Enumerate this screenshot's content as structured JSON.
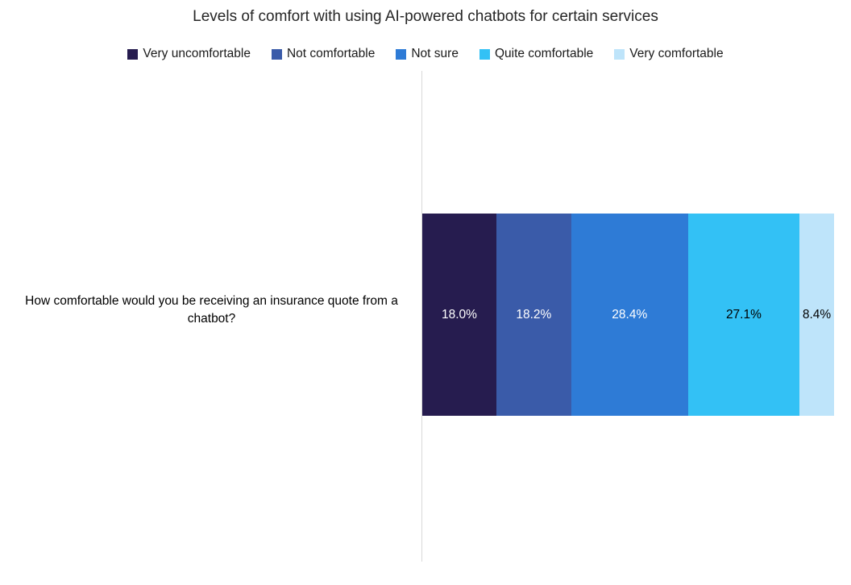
{
  "chart_data": {
    "type": "bar",
    "orientation": "horizontal",
    "stacked": true,
    "grid": false,
    "legend_position": "top",
    "title": "Levels of comfort with using AI-powered chatbots for certain services",
    "categories": [
      "How comfortable would you be receiving an insurance quote from a chatbot?"
    ],
    "xlim": [
      0,
      100
    ],
    "series": [
      {
        "name": "Very uncomfortable",
        "values": [
          18.0
        ],
        "label": "18.0%",
        "color": "#261C4F",
        "label_color": "#FFFFFF"
      },
      {
        "name": "Not comfortable",
        "values": [
          18.2
        ],
        "label": "18.2%",
        "color": "#3A5BA9",
        "label_color": "#FFFFFF"
      },
      {
        "name": "Not sure",
        "values": [
          28.4
        ],
        "label": "28.4%",
        "color": "#2E7BD6",
        "label_color": "#FFFFFF"
      },
      {
        "name": "Quite comfortable",
        "values": [
          27.1
        ],
        "label": "27.1%",
        "color": "#33C1F5",
        "label_color": "#000000"
      },
      {
        "name": "Very comfortable",
        "values": [
          8.4
        ],
        "label": "8.4%",
        "color": "#BEE4FA",
        "label_color": "#000000"
      }
    ]
  }
}
